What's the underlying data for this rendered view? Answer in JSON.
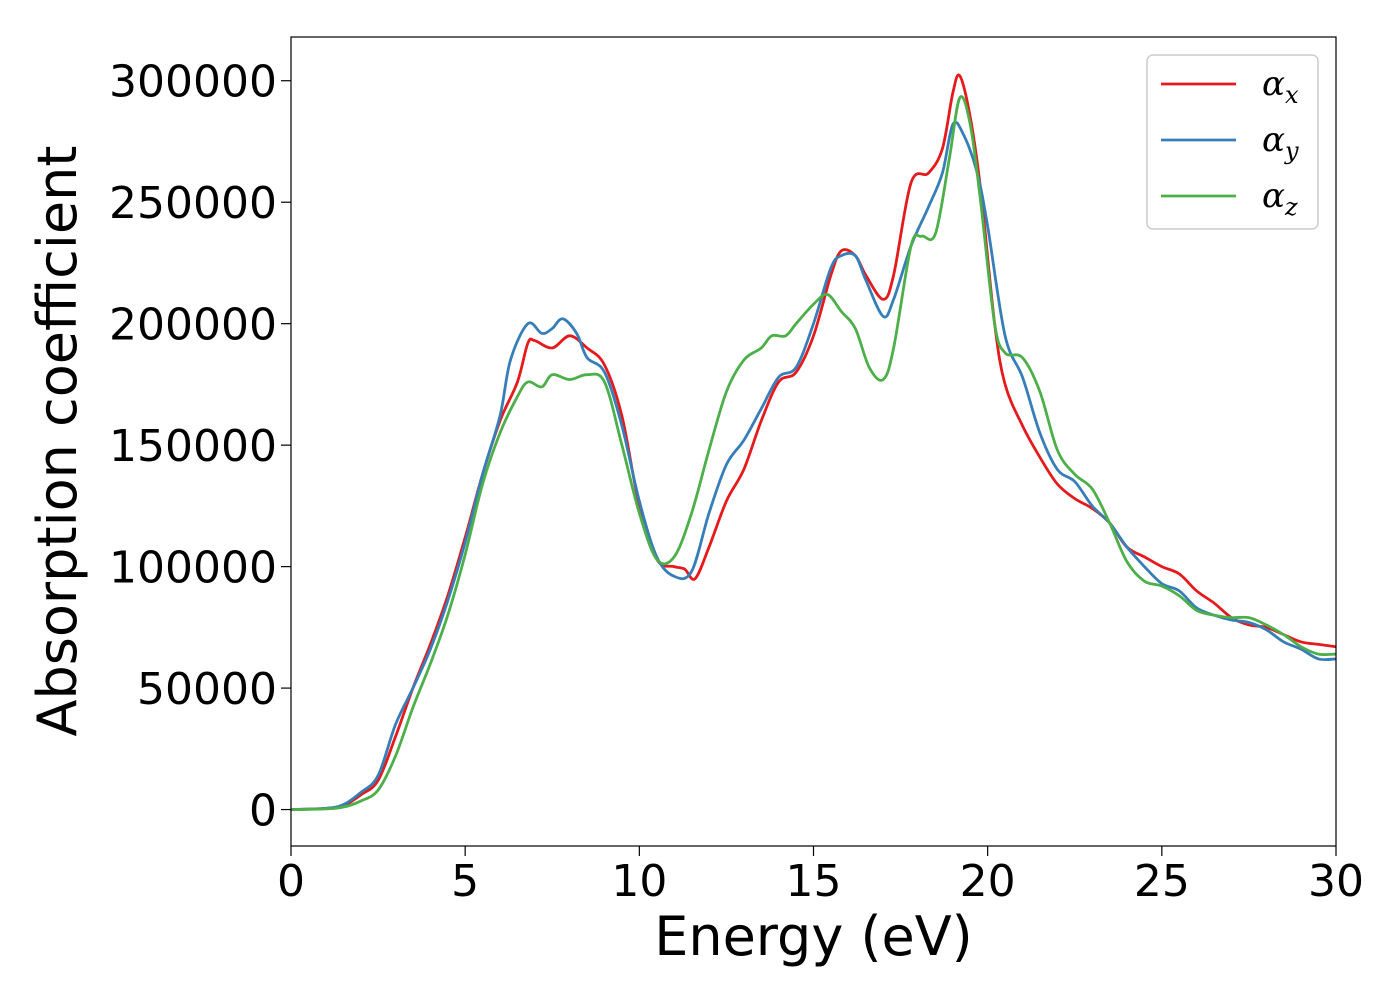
{
  "chart_data": {
    "type": "line",
    "title": "",
    "xlabel": "Energy (eV)",
    "ylabel": "Absorption coefficient",
    "xlim": [
      0,
      30
    ],
    "ylim": [
      -15000,
      318000
    ],
    "xticks": [
      0,
      5,
      10,
      15,
      20,
      25,
      30
    ],
    "yticks": [
      0,
      50000,
      100000,
      150000,
      200000,
      250000,
      300000
    ],
    "grid": false,
    "legend_position": "top-right",
    "legend": [
      {
        "symbol": "α",
        "sub": "x",
        "color": "#e41a1c"
      },
      {
        "symbol": "α",
        "sub": "y",
        "color": "#377eb8"
      },
      {
        "symbol": "α",
        "sub": "z",
        "color": "#4daf4a"
      }
    ],
    "series": [
      {
        "color": "#e41a1c",
        "points": [
          [
            0,
            0
          ],
          [
            1,
            500
          ],
          [
            1.5,
            1500
          ],
          [
            2,
            6000
          ],
          [
            2.5,
            12000
          ],
          [
            3,
            30000
          ],
          [
            3.5,
            50000
          ],
          [
            4,
            68000
          ],
          [
            4.5,
            88000
          ],
          [
            5,
            112000
          ],
          [
            5.5,
            138000
          ],
          [
            6,
            160000
          ],
          [
            6.5,
            176000
          ],
          [
            6.8,
            192000
          ],
          [
            7,
            193000
          ],
          [
            7.5,
            190000
          ],
          [
            8,
            195000
          ],
          [
            8.5,
            190000
          ],
          [
            9,
            183000
          ],
          [
            9.5,
            162000
          ],
          [
            10,
            125000
          ],
          [
            10.5,
            103000
          ],
          [
            11,
            100000
          ],
          [
            11.3,
            99000
          ],
          [
            11.6,
            95000
          ],
          [
            12,
            108000
          ],
          [
            12.5,
            127000
          ],
          [
            13,
            140000
          ],
          [
            13.5,
            160000
          ],
          [
            14,
            176000
          ],
          [
            14.5,
            180000
          ],
          [
            15,
            195000
          ],
          [
            15.5,
            220000
          ],
          [
            15.8,
            230000
          ],
          [
            16.2,
            228000
          ],
          [
            16.5,
            220000
          ],
          [
            17,
            210000
          ],
          [
            17.3,
            220000
          ],
          [
            17.8,
            258000
          ],
          [
            18.3,
            262000
          ],
          [
            18.7,
            272000
          ],
          [
            19,
            295000
          ],
          [
            19.2,
            302000
          ],
          [
            19.5,
            285000
          ],
          [
            19.8,
            255000
          ],
          [
            20.2,
            200000
          ],
          [
            20.5,
            175000
          ],
          [
            21,
            158000
          ],
          [
            21.5,
            145000
          ],
          [
            22,
            134000
          ],
          [
            22.5,
            128000
          ],
          [
            23,
            124000
          ],
          [
            23.5,
            118000
          ],
          [
            24,
            108000
          ],
          [
            24.5,
            104000
          ],
          [
            25,
            100000
          ],
          [
            25.5,
            97000
          ],
          [
            26,
            90000
          ],
          [
            26.5,
            85000
          ],
          [
            27,
            79000
          ],
          [
            27.5,
            76000
          ],
          [
            28,
            75000
          ],
          [
            28.5,
            72000
          ],
          [
            29,
            69000
          ],
          [
            29.5,
            68000
          ],
          [
            30,
            67000
          ]
        ]
      },
      {
        "color": "#377eb8",
        "points": [
          [
            0,
            0
          ],
          [
            1,
            500
          ],
          [
            1.5,
            2000
          ],
          [
            2,
            7000
          ],
          [
            2.5,
            14000
          ],
          [
            3,
            35000
          ],
          [
            3.5,
            50000
          ],
          [
            4,
            66000
          ],
          [
            4.5,
            86000
          ],
          [
            5,
            110000
          ],
          [
            5.5,
            138000
          ],
          [
            6,
            162000
          ],
          [
            6.3,
            185000
          ],
          [
            6.8,
            200000
          ],
          [
            7.2,
            196000
          ],
          [
            7.5,
            198000
          ],
          [
            7.8,
            202000
          ],
          [
            8.2,
            196000
          ],
          [
            8.5,
            186000
          ],
          [
            9,
            180000
          ],
          [
            9.5,
            158000
          ],
          [
            10,
            127000
          ],
          [
            10.5,
            104000
          ],
          [
            11,
            96000
          ],
          [
            11.5,
            98000
          ],
          [
            12,
            122000
          ],
          [
            12.5,
            142000
          ],
          [
            13,
            152000
          ],
          [
            13.5,
            165000
          ],
          [
            14,
            178000
          ],
          [
            14.5,
            182000
          ],
          [
            15,
            200000
          ],
          [
            15.5,
            223000
          ],
          [
            15.8,
            228000
          ],
          [
            16.2,
            228000
          ],
          [
            16.5,
            218000
          ],
          [
            17,
            203000
          ],
          [
            17.3,
            210000
          ],
          [
            17.8,
            232000
          ],
          [
            18.3,
            248000
          ],
          [
            18.7,
            262000
          ],
          [
            19,
            282000
          ],
          [
            19.3,
            278000
          ],
          [
            19.7,
            262000
          ],
          [
            20,
            240000
          ],
          [
            20.5,
            195000
          ],
          [
            21,
            178000
          ],
          [
            21.5,
            155000
          ],
          [
            22,
            140000
          ],
          [
            22.5,
            135000
          ],
          [
            23,
            125000
          ],
          [
            23.5,
            118000
          ],
          [
            24,
            108000
          ],
          [
            24.5,
            100000
          ],
          [
            25,
            93000
          ],
          [
            25.5,
            90000
          ],
          [
            26,
            83000
          ],
          [
            26.5,
            80000
          ],
          [
            27,
            78000
          ],
          [
            27.5,
            77000
          ],
          [
            28,
            74000
          ],
          [
            28.5,
            69000
          ],
          [
            29,
            66000
          ],
          [
            29.5,
            62000
          ],
          [
            30,
            62000
          ]
        ]
      },
      {
        "color": "#4daf4a",
        "points": [
          [
            0,
            0
          ],
          [
            1,
            300
          ],
          [
            1.5,
            1000
          ],
          [
            2,
            3500
          ],
          [
            2.5,
            8000
          ],
          [
            3,
            22000
          ],
          [
            3.5,
            42000
          ],
          [
            4,
            60000
          ],
          [
            4.5,
            80000
          ],
          [
            5,
            105000
          ],
          [
            5.5,
            134000
          ],
          [
            6,
            155000
          ],
          [
            6.5,
            170000
          ],
          [
            6.8,
            176000
          ],
          [
            7.2,
            174000
          ],
          [
            7.5,
            179000
          ],
          [
            8,
            177000
          ],
          [
            8.5,
            179000
          ],
          [
            9,
            176000
          ],
          [
            9.5,
            150000
          ],
          [
            10,
            122000
          ],
          [
            10.5,
            103000
          ],
          [
            11,
            104000
          ],
          [
            11.5,
            122000
          ],
          [
            12,
            148000
          ],
          [
            12.5,
            172000
          ],
          [
            13,
            185000
          ],
          [
            13.5,
            190000
          ],
          [
            13.8,
            195000
          ],
          [
            14.2,
            195000
          ],
          [
            14.5,
            200000
          ],
          [
            15,
            208000
          ],
          [
            15.4,
            212000
          ],
          [
            15.8,
            205000
          ],
          [
            16.2,
            198000
          ],
          [
            16.6,
            182000
          ],
          [
            17,
            177000
          ],
          [
            17.3,
            190000
          ],
          [
            17.8,
            232000
          ],
          [
            18.1,
            236000
          ],
          [
            18.5,
            237000
          ],
          [
            18.9,
            268000
          ],
          [
            19.2,
            293000
          ],
          [
            19.5,
            282000
          ],
          [
            19.8,
            250000
          ],
          [
            20.2,
            200000
          ],
          [
            20.5,
            188000
          ],
          [
            21,
            186000
          ],
          [
            21.5,
            172000
          ],
          [
            22,
            148000
          ],
          [
            22.5,
            138000
          ],
          [
            23,
            132000
          ],
          [
            23.5,
            118000
          ],
          [
            24,
            102000
          ],
          [
            24.5,
            94000
          ],
          [
            25,
            92000
          ],
          [
            25.5,
            88000
          ],
          [
            26,
            82000
          ],
          [
            26.5,
            80000
          ],
          [
            27,
            79000
          ],
          [
            27.5,
            79000
          ],
          [
            28,
            76000
          ],
          [
            28.5,
            72000
          ],
          [
            29,
            67000
          ],
          [
            29.5,
            64000
          ],
          [
            30,
            64000
          ]
        ]
      }
    ]
  }
}
